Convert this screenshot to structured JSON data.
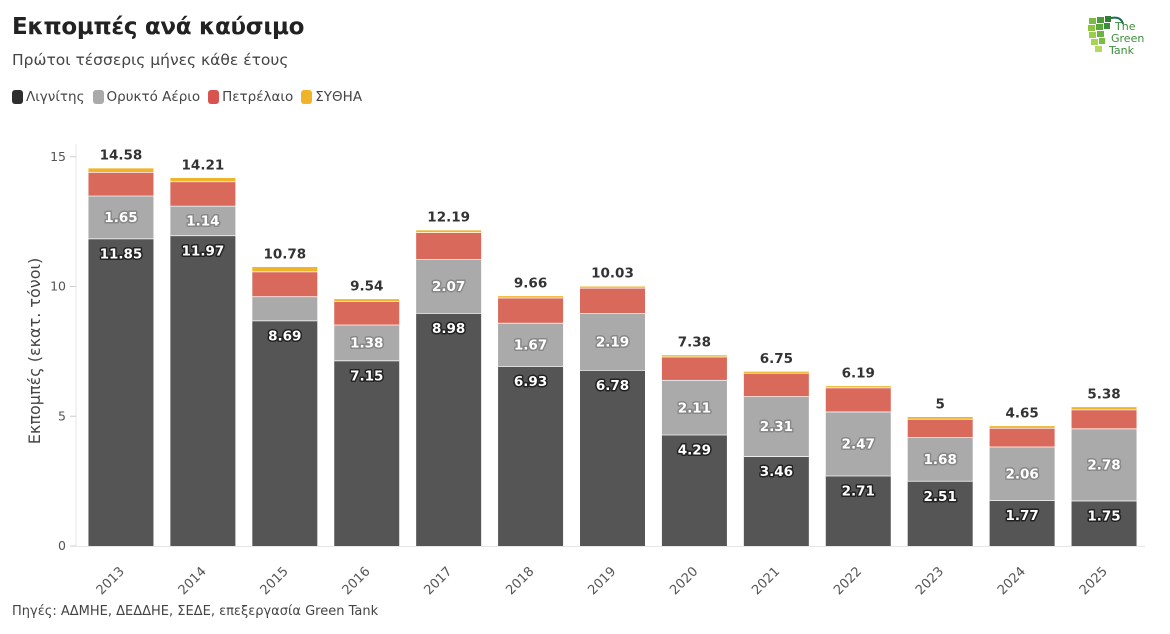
{
  "header": {
    "title": "Εκπομπές ανά καύσιμο",
    "subtitle": "Πρώτοι τέσσερις μήνες κάθε έτους"
  },
  "legend": [
    {
      "label": "Λιγνίτης",
      "color": "#555555"
    },
    {
      "label": "Ορυκτό Αέριο",
      "color": "#aaaaaa"
    },
    {
      "label": "Πετρέλαιο",
      "color": "#d9695a"
    },
    {
      "label": "ΣΥΘΗΑ",
      "color": "#f0b429"
    }
  ],
  "logo": {
    "line1": "The",
    "line2": "Green",
    "line3": "Tank"
  },
  "footer": {
    "source": "Πηγές: ΑΔΜΗΕ, ΔΕΔΔΗΕ, ΣΕΔΕ, επεξεργασία Green Tank"
  },
  "chart_data": {
    "type": "bar",
    "stacked": true,
    "title": "Εκπομπές ανά καύσιμο",
    "subtitle": "Πρώτοι τέσσερις μήνες κάθε έτους",
    "xlabel": "",
    "ylabel": "Εκπομπές (εκατ. τόνοι)",
    "ylim": [
      0,
      15.5
    ],
    "yticks": [
      0,
      5,
      10,
      15
    ],
    "grid": false,
    "legend_position": "top-left",
    "categories": [
      "2013",
      "2014",
      "2015",
      "2016",
      "2017",
      "2018",
      "2019",
      "2020",
      "2021",
      "2022",
      "2023",
      "2024",
      "2025"
    ],
    "series": [
      {
        "name": "Λιγνίτης",
        "color": "#555555",
        "values": [
          11.85,
          11.97,
          8.69,
          7.15,
          8.98,
          6.93,
          6.78,
          4.29,
          3.46,
          2.71,
          2.51,
          1.77,
          1.75
        ],
        "show_labels": true
      },
      {
        "name": "Ορυκτό Αέριο",
        "color": "#aaaaaa",
        "values": [
          1.65,
          1.14,
          0.93,
          1.38,
          2.07,
          1.67,
          2.19,
          2.11,
          2.31,
          2.47,
          1.68,
          2.06,
          2.78
        ],
        "show_labels": [
          true,
          true,
          false,
          true,
          true,
          true,
          true,
          true,
          true,
          true,
          true,
          true,
          true
        ]
      },
      {
        "name": "Πετρέλαιο",
        "color": "#d9695a",
        "values": [
          0.91,
          0.94,
          0.96,
          0.91,
          1.04,
          0.97,
          0.98,
          0.9,
          0.9,
          0.93,
          0.71,
          0.72,
          0.73
        ],
        "show_labels": false
      },
      {
        "name": "ΣΥΘΗΑ",
        "color": "#f0b429",
        "values": [
          0.17,
          0.16,
          0.2,
          0.1,
          0.1,
          0.09,
          0.08,
          0.08,
          0.08,
          0.08,
          0.1,
          0.1,
          0.12
        ],
        "show_labels": false
      }
    ],
    "totals": [
      "14.58",
      "14.21",
      "10.78",
      "9.54",
      "12.19",
      "9.66",
      "10.03",
      "7.38",
      "6.75",
      "6.19",
      "5",
      "4.65",
      "5.38"
    ]
  }
}
